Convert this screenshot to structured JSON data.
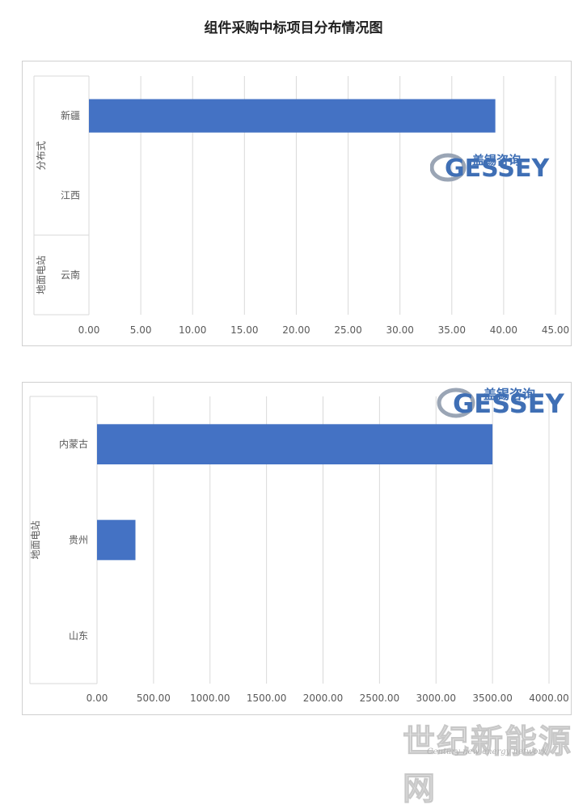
{
  "page_title": "组件采购中标项目分布情况图",
  "watermark": {
    "cn_text": "盖锡咨询",
    "en_text": "GESSEY",
    "footer_cn": "世纪新能源网",
    "footer_en": "Century new energy network",
    "colors": {
      "logo_blue": "#3f6fb5",
      "logo_gray": "#9aa5b5"
    }
  },
  "colors": {
    "bar": "#4472c4",
    "grid": "#d9d9d9",
    "axis_text": "#595959"
  },
  "chart_data": [
    {
      "type": "bar",
      "orientation": "horizontal",
      "groups": [
        {
          "name": "分布式",
          "categories": [
            "新疆",
            "江西"
          ]
        },
        {
          "name": "地面电站",
          "categories": [
            "云南"
          ]
        }
      ],
      "categories": [
        "新疆",
        "江西",
        "云南"
      ],
      "values": [
        39.2,
        0,
        0
      ],
      "xlim": [
        0,
        45
      ],
      "xticks": [
        "0.00",
        "5.00",
        "10.00",
        "15.00",
        "20.00",
        "25.00",
        "30.00",
        "35.00",
        "40.00",
        "45.00"
      ],
      "tick_values": [
        0,
        5,
        10,
        15,
        20,
        25,
        30,
        35,
        40,
        45
      ],
      "grid": true,
      "legend": "none"
    },
    {
      "type": "bar",
      "orientation": "horizontal",
      "groups": [
        {
          "name": "地面电站",
          "categories": [
            "内蒙古",
            "贵州",
            "山东"
          ]
        }
      ],
      "categories": [
        "内蒙古",
        "贵州",
        "山东"
      ],
      "values": [
        3500,
        340,
        0
      ],
      "xlim": [
        0,
        4000
      ],
      "xticks": [
        "0.00",
        "500.00",
        "1000.00",
        "1500.00",
        "2000.00",
        "2500.00",
        "3000.00",
        "3500.00",
        "4000.00"
      ],
      "tick_values": [
        0,
        500,
        1000,
        1500,
        2000,
        2500,
        3000,
        3500,
        4000
      ],
      "grid": true,
      "legend": "none"
    }
  ]
}
